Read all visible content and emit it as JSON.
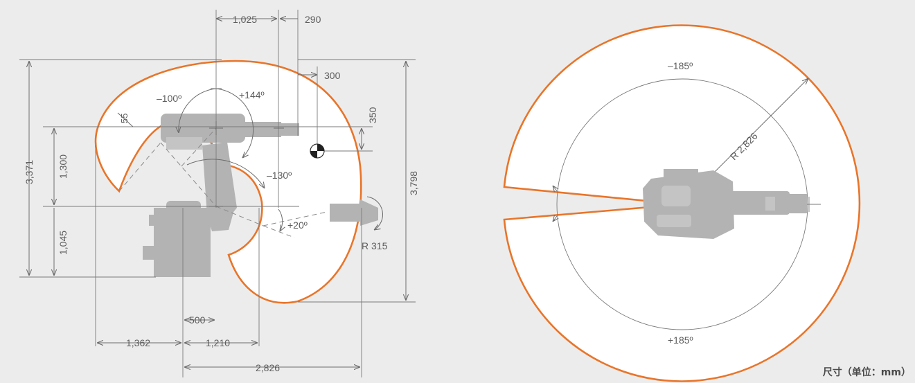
{
  "side_view": {
    "dimensions": {
      "d1025": "1,025",
      "d290": "290",
      "d300": "300",
      "d350": "350",
      "d55": "55",
      "d3371": "3,371",
      "d1300": "1,300",
      "d1045": "1,045",
      "d3798": "3,798",
      "d500": "500",
      "d1362": "1,362",
      "d1210": "1,210",
      "d2826": "2,826",
      "r315": "R 315"
    },
    "angles": {
      "a_neg100": "–100º",
      "a_pos144": "+144º",
      "a_neg130": "–130º",
      "a_pos20": "+20º"
    }
  },
  "top_view": {
    "angle_top": "–185º",
    "angle_bottom": "+185º",
    "radius": "R 2,826"
  },
  "unit_note": "尺寸（单位：mm）",
  "colors": {
    "envelope": "#e8752a",
    "robot": "#b3b3b3",
    "background": "#ececec",
    "dimension": "#6b6b6b"
  }
}
